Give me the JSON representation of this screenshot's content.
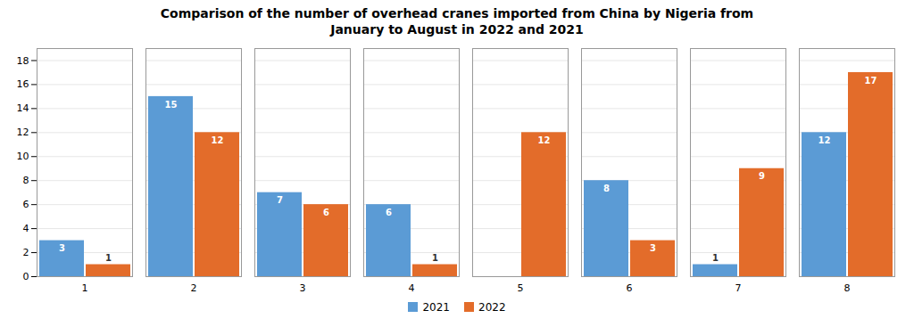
{
  "chart_data": {
    "type": "bar",
    "title": "Comparison of the number of overhead cranes imported from China by Nigeria from\nJanuary to August in 2022 and 2021",
    "categories": [
      "1",
      "2",
      "3",
      "4",
      "5",
      "6",
      "7",
      "8"
    ],
    "series": [
      {
        "name": "2021",
        "color": "#5b9bd5",
        "values": [
          3,
          15,
          7,
          6,
          0,
          8,
          1,
          12
        ]
      },
      {
        "name": "2022",
        "color": "#e36c2a",
        "values": [
          1,
          12,
          6,
          1,
          12,
          3,
          9,
          17
        ]
      }
    ],
    "ylim": [
      0,
      19
    ],
    "yticks": [
      0,
      2,
      4,
      6,
      8,
      10,
      12,
      14,
      16,
      18
    ],
    "grid": true,
    "legend": "bottom",
    "data_labels": true
  }
}
